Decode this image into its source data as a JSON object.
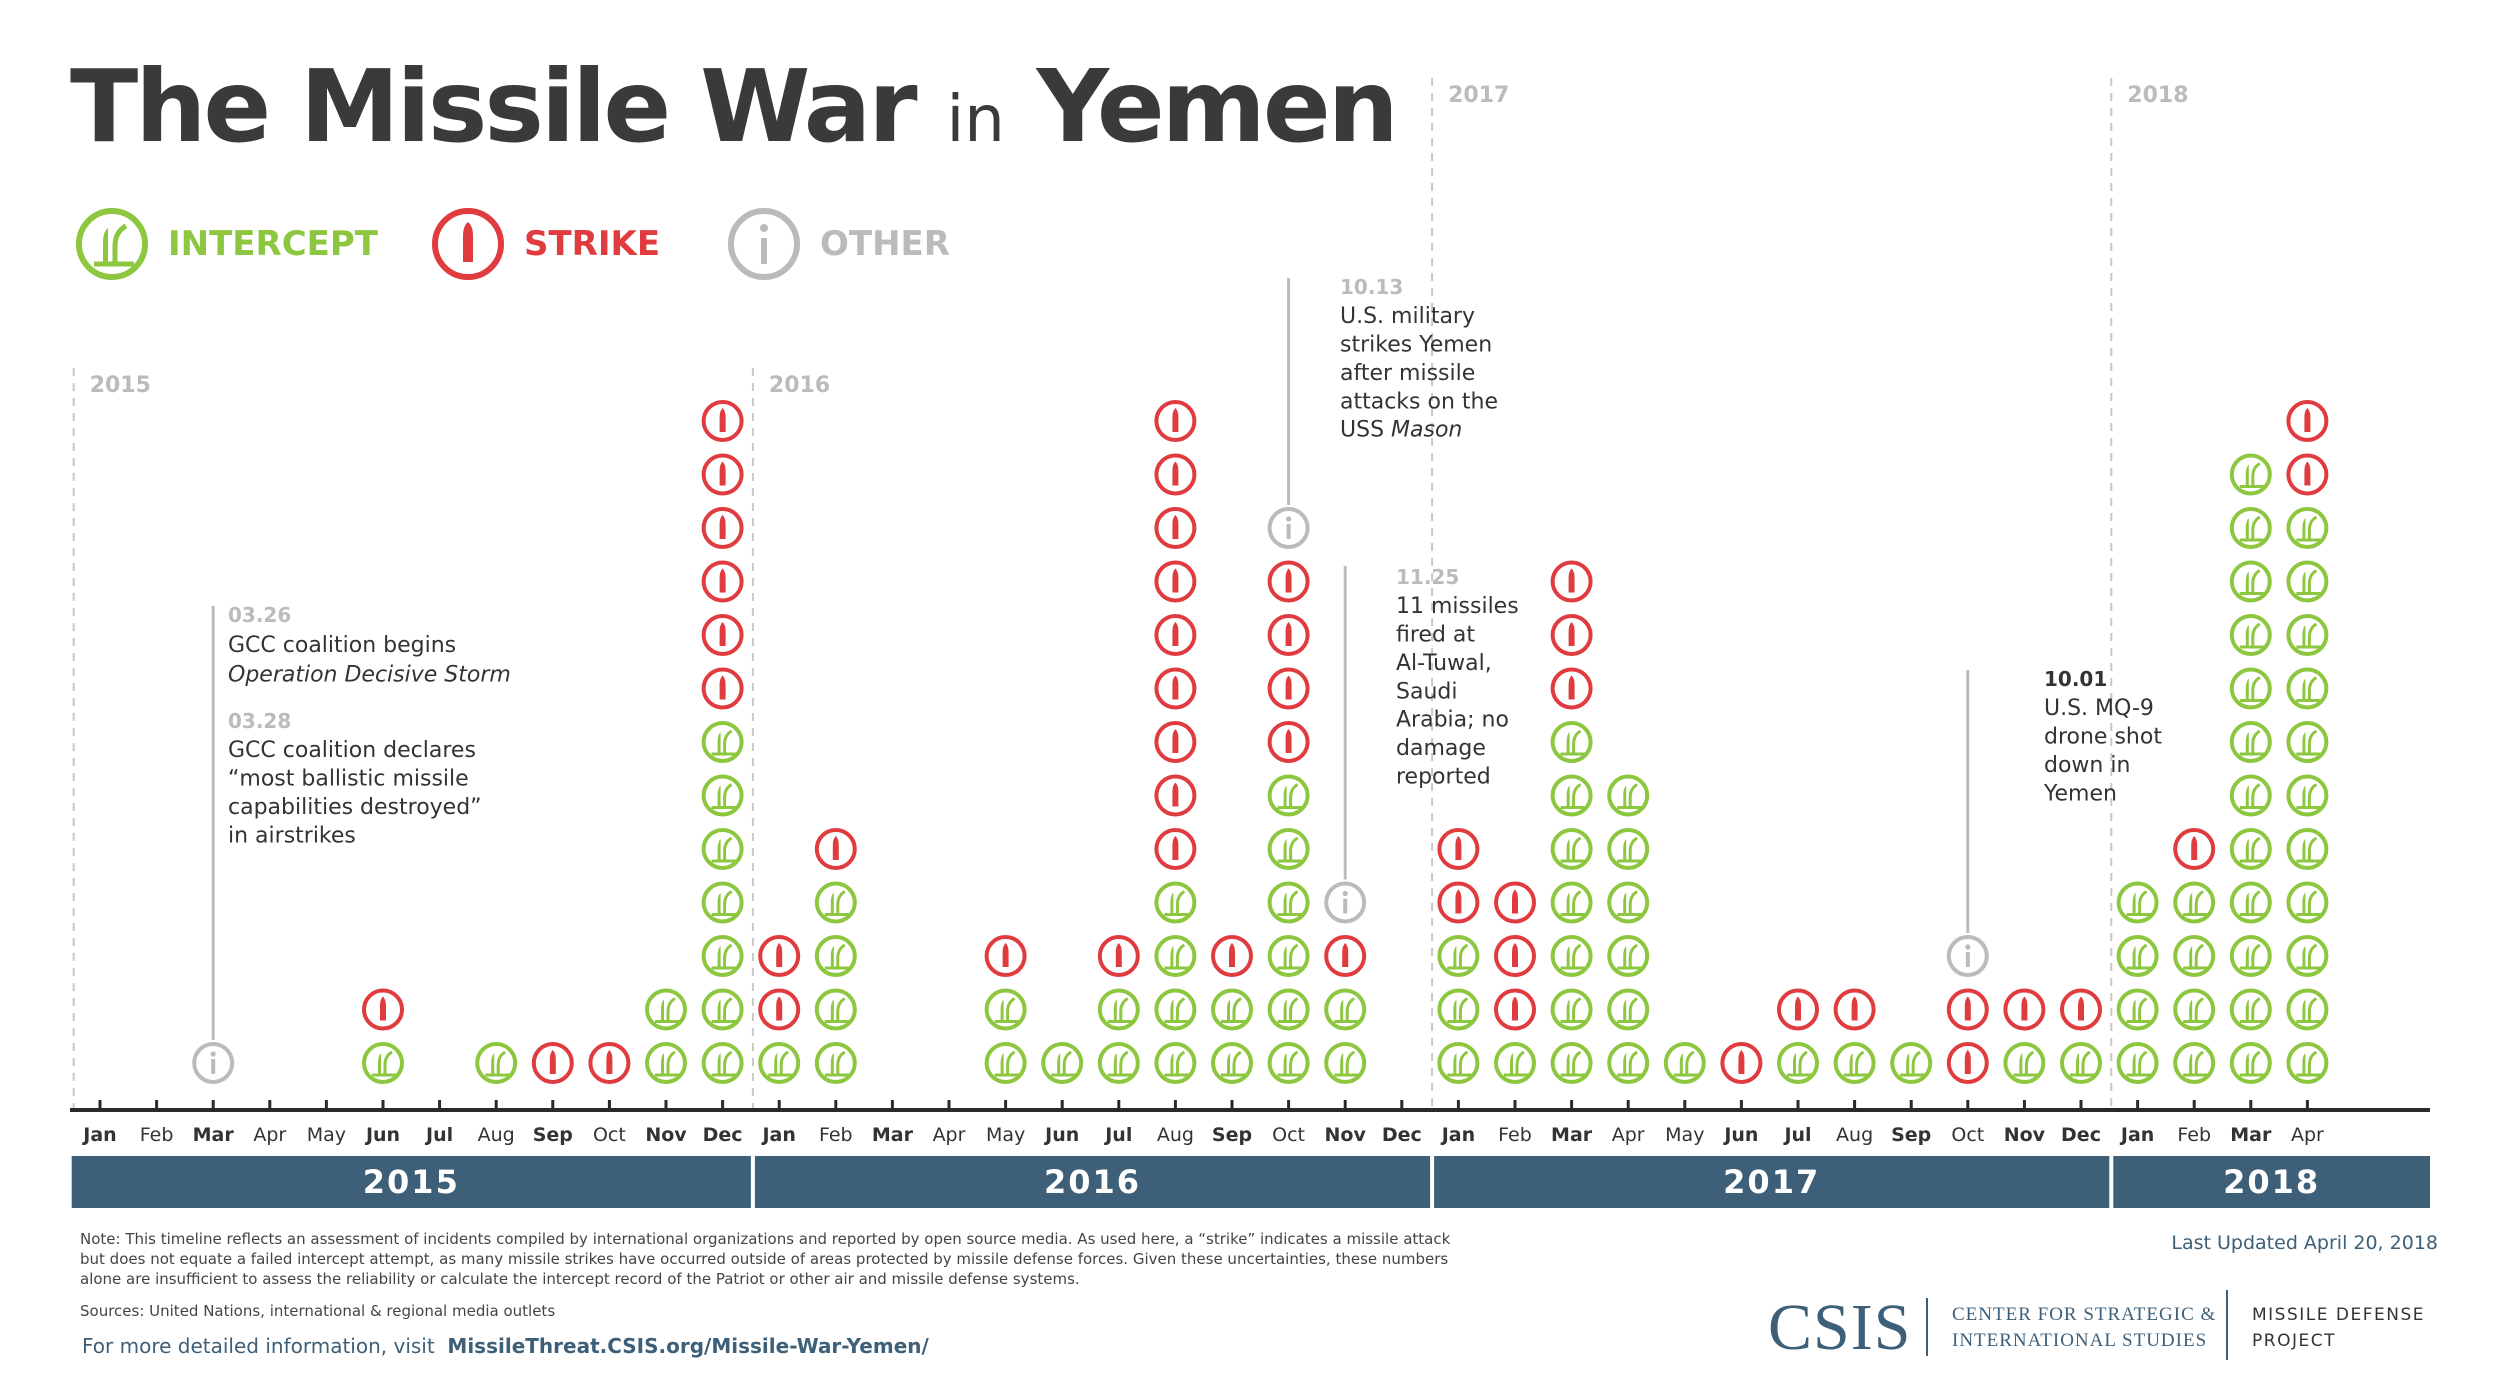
{
  "title_main": "The Missile War",
  "title_in": "in",
  "title_end": "Yemen",
  "legend": {
    "intercept": "INTERCEPT",
    "strike": "STRIKE",
    "other": "OTHER"
  },
  "colors": {
    "intercept": "#8dc63f",
    "strike": "#e03c3f",
    "other": "#bbbbbb",
    "year_band": "#3d5f78",
    "text": "#3a3a3a"
  },
  "chart_data": {
    "type": "stacked-icon-timeline",
    "months": [
      "Jan",
      "Feb",
      "Mar",
      "Apr",
      "May",
      "Jun",
      "Jul",
      "Aug",
      "Sep",
      "Oct",
      "Nov",
      "Dec",
      "Jan",
      "Feb",
      "Mar",
      "Apr",
      "May",
      "Jun",
      "Jul",
      "Aug",
      "Sep",
      "Oct",
      "Nov",
      "Dec",
      "Jan",
      "Feb",
      "Mar",
      "Apr",
      "May",
      "Jun",
      "Jul",
      "Aug",
      "Sep",
      "Oct",
      "Nov",
      "Dec",
      "Jan",
      "Feb",
      "Mar",
      "Apr"
    ],
    "years": [
      {
        "label": "2015",
        "start": 0,
        "end": 12
      },
      {
        "label": "2016",
        "start": 12,
        "end": 24
      },
      {
        "label": "2017",
        "start": 24,
        "end": 36
      },
      {
        "label": "2018",
        "start": 36,
        "end": 40
      }
    ],
    "year_markers": [
      {
        "label": "2015",
        "index": 0
      },
      {
        "label": "2016",
        "index": 12
      },
      {
        "label": "2017",
        "index": 24
      },
      {
        "label": "2018",
        "index": 36
      }
    ],
    "stacks": [
      {
        "month": "Jan 2015",
        "events": []
      },
      {
        "month": "Feb 2015",
        "events": []
      },
      {
        "month": "Mar 2015",
        "events": [
          "other"
        ]
      },
      {
        "month": "Apr 2015",
        "events": []
      },
      {
        "month": "May 2015",
        "events": []
      },
      {
        "month": "Jun 2015",
        "events": [
          "intercept",
          "strike"
        ]
      },
      {
        "month": "Jul 2015",
        "events": []
      },
      {
        "month": "Aug 2015",
        "events": [
          "intercept"
        ]
      },
      {
        "month": "Sep 2015",
        "events": [
          "strike"
        ]
      },
      {
        "month": "Oct 2015",
        "events": [
          "strike"
        ]
      },
      {
        "month": "Nov 2015",
        "events": [
          "intercept",
          "intercept"
        ]
      },
      {
        "month": "Dec 2015",
        "events": [
          "intercept",
          "intercept",
          "intercept",
          "intercept",
          "intercept",
          "intercept",
          "intercept",
          "strike",
          "strike",
          "strike",
          "strike",
          "strike",
          "strike"
        ]
      },
      {
        "month": "Jan 2016",
        "events": [
          "intercept",
          "strike",
          "strike"
        ]
      },
      {
        "month": "Feb 2016",
        "events": [
          "intercept",
          "intercept",
          "intercept",
          "intercept",
          "strike"
        ]
      },
      {
        "month": "Mar 2016",
        "events": []
      },
      {
        "month": "Apr 2016",
        "events": []
      },
      {
        "month": "May 2016",
        "events": [
          "intercept",
          "intercept",
          "strike"
        ]
      },
      {
        "month": "Jun 2016",
        "events": [
          "intercept"
        ]
      },
      {
        "month": "Jul 2016",
        "events": [
          "intercept",
          "intercept",
          "strike"
        ]
      },
      {
        "month": "Aug 2016",
        "events": [
          "intercept",
          "intercept",
          "intercept",
          "intercept",
          "strike",
          "strike",
          "strike",
          "strike",
          "strike",
          "strike",
          "strike",
          "strike",
          "strike"
        ]
      },
      {
        "month": "Sep 2016",
        "events": [
          "intercept",
          "intercept",
          "strike"
        ]
      },
      {
        "month": "Oct 2016",
        "events": [
          "intercept",
          "intercept",
          "intercept",
          "intercept",
          "intercept",
          "intercept",
          "strike",
          "strike",
          "strike",
          "strike",
          "other"
        ]
      },
      {
        "month": "Nov 2016",
        "events": [
          "intercept",
          "intercept",
          "strike",
          "other"
        ]
      },
      {
        "month": "Dec 2016",
        "events": []
      },
      {
        "month": "Jan 2017",
        "events": [
          "intercept",
          "intercept",
          "intercept",
          "strike",
          "strike"
        ]
      },
      {
        "month": "Feb 2017",
        "events": [
          "intercept",
          "strike",
          "strike",
          "strike"
        ]
      },
      {
        "month": "Mar 2017",
        "events": [
          "intercept",
          "intercept",
          "intercept",
          "intercept",
          "intercept",
          "intercept",
          "intercept",
          "strike",
          "strike",
          "strike"
        ]
      },
      {
        "month": "Apr 2017",
        "events": [
          "intercept",
          "intercept",
          "intercept",
          "intercept",
          "intercept",
          "intercept"
        ]
      },
      {
        "month": "May 2017",
        "events": [
          "intercept"
        ]
      },
      {
        "month": "Jun 2017",
        "events": [
          "strike"
        ]
      },
      {
        "month": "Jul 2017",
        "events": [
          "intercept",
          "strike"
        ]
      },
      {
        "month": "Aug 2017",
        "events": [
          "intercept",
          "strike"
        ]
      },
      {
        "month": "Sep 2017",
        "events": [
          "intercept"
        ]
      },
      {
        "month": "Oct 2017",
        "events": [
          "strike",
          "strike",
          "other"
        ]
      },
      {
        "month": "Nov 2017",
        "events": [
          "intercept",
          "strike"
        ]
      },
      {
        "month": "Dec 2017",
        "events": [
          "intercept",
          "strike"
        ]
      },
      {
        "month": "Jan 2018",
        "events": [
          "intercept",
          "intercept",
          "intercept",
          "intercept"
        ]
      },
      {
        "month": "Feb 2018",
        "events": [
          "intercept",
          "intercept",
          "intercept",
          "intercept",
          "strike"
        ]
      },
      {
        "month": "Mar 2018",
        "events": [
          "intercept",
          "intercept",
          "intercept",
          "intercept",
          "intercept",
          "intercept",
          "intercept",
          "intercept",
          "intercept",
          "intercept",
          "intercept",
          "intercept"
        ]
      },
      {
        "month": "Apr 2018",
        "events": [
          "intercept",
          "intercept",
          "intercept",
          "intercept",
          "intercept",
          "intercept",
          "intercept",
          "intercept",
          "intercept",
          "intercept",
          "intercept",
          "strike",
          "strike"
        ]
      }
    ],
    "annotations": [
      {
        "date": "03.26",
        "lines": [
          "GCC coalition begins"
        ],
        "italic": "Operation Decisive Storm"
      },
      {
        "date": "03.28",
        "lines": [
          "GCC coalition declares",
          "“most ballistic missile",
          "capabilities destroyed”",
          "in airstrikes"
        ]
      },
      {
        "date": "10.13",
        "lines": [
          "U.S. military",
          "strikes Yemen",
          "after missile",
          "attacks on the"
        ],
        "last": "USS ",
        "italic": "Mason"
      },
      {
        "date": "11.25",
        "lines": [
          "11 missiles",
          "fired at",
          "Al-Tuwal,",
          "Saudi",
          "Arabia; no",
          "damage",
          "reported"
        ]
      },
      {
        "date": "10.01",
        "lines": [
          "U.S. MQ-9",
          "drone shot",
          "down in",
          "Yemen"
        ]
      }
    ]
  },
  "footer": {
    "note": "Note: This timeline reflects an assessment of incidents compiled by international organizations and reported by open source media. As used here, a “strike” indicates a missile attack but does not equate a failed intercept attempt, as many missile strikes have occurred outside of areas protected by missile defense forces.  Given these uncertainties, these numbers alone are insufficient to assess the reliability or calculate the intercept record of the Patriot or other air and missile defense systems.",
    "sources": "Sources: United Nations, international & regional media outlets",
    "more_prefix": "For more detailed information, visit",
    "more_link": "MissileThreat.CSIS.org/Missile-War-Yemen/",
    "updated": "Last Updated April 20, 2018",
    "csis": "CSIS",
    "csis_line1": "CENTER FOR STRATEGIC &",
    "csis_line2": "INTERNATIONAL STUDIES",
    "mdp_line1": "MISSILE DEFENSE",
    "mdp_line2": "PROJECT"
  }
}
